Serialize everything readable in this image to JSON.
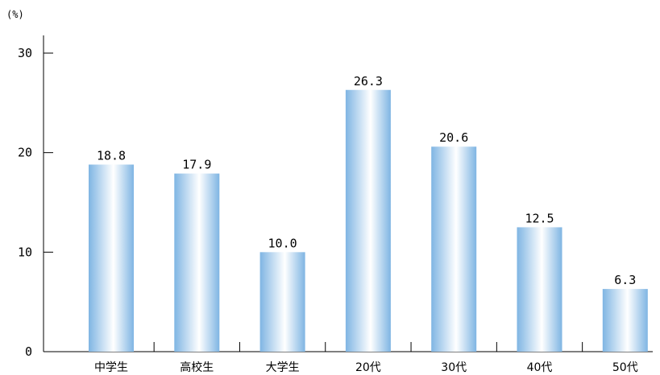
{
  "chart_data": {
    "type": "bar",
    "title": "",
    "xlabel": "",
    "ylabel": "",
    "y_unit_label": "(%)",
    "categories": [
      "中学生",
      "高校生",
      "大学生",
      "20代",
      "30代",
      "40代",
      "50代"
    ],
    "values": [
      18.8,
      17.9,
      10.0,
      26.3,
      20.6,
      12.5,
      6.3
    ],
    "value_labels": [
      "18.8",
      "17.9",
      "10.0",
      "26.3",
      "20.6",
      "12.5",
      "6.3"
    ],
    "ylim": [
      0,
      30
    ],
    "yticks": [
      0,
      10,
      20,
      30
    ],
    "grid": false,
    "legend": "none",
    "bar_gradient": [
      "#7fb5e3",
      "#ffffff",
      "#7fb5e3"
    ]
  }
}
